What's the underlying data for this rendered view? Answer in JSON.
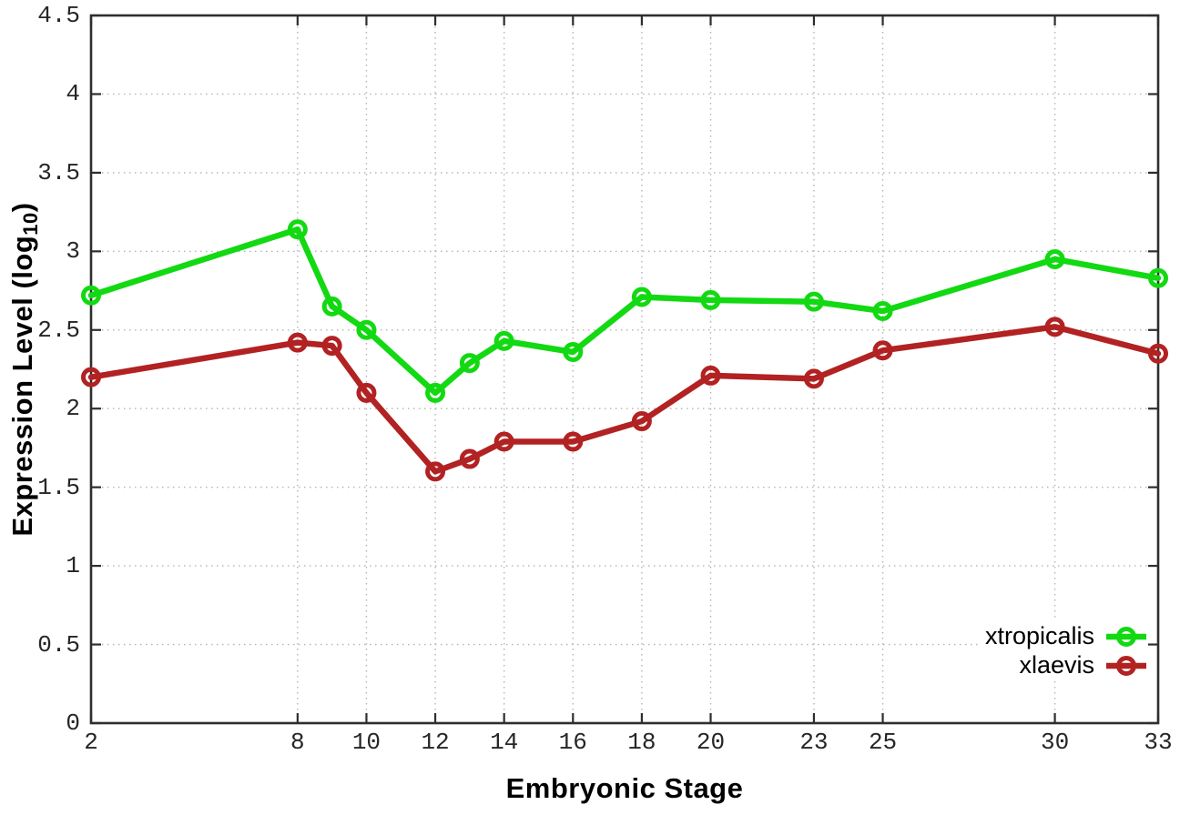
{
  "chart_data": {
    "type": "line",
    "title": "",
    "xlabel": "Embryonic Stage",
    "ylabel": "Expression Level (log10)",
    "ylabel_parts": {
      "pre": "Expression Level (log",
      "sub": "10",
      "post": ")"
    },
    "x": [
      2,
      8,
      9,
      10,
      12,
      13,
      14,
      16,
      18,
      20,
      23,
      25,
      30,
      33
    ],
    "series": [
      {
        "name": "xtropicalis",
        "color": "#12d912",
        "values": [
          2.72,
          3.14,
          2.65,
          2.5,
          2.1,
          2.29,
          2.43,
          2.36,
          2.71,
          2.69,
          2.68,
          2.62,
          2.95,
          2.83
        ]
      },
      {
        "name": "xlaevis",
        "color": "#b22222",
        "values": [
          2.2,
          2.42,
          2.4,
          2.1,
          1.6,
          1.68,
          1.79,
          1.79,
          1.92,
          2.21,
          2.19,
          2.37,
          2.52,
          2.35
        ]
      }
    ],
    "xlim": [
      2,
      33
    ],
    "ylim": [
      0,
      4.5
    ],
    "x_ticks": {
      "values": [
        2,
        8,
        10,
        12,
        14,
        16,
        18,
        20,
        23,
        25,
        30,
        33
      ],
      "labels": [
        "2",
        "8",
        "10",
        "12",
        "14",
        "16",
        "18",
        "20",
        "23",
        "25",
        "30",
        "33"
      ]
    },
    "y_ticks": {
      "values": [
        0,
        0.5,
        1,
        1.5,
        2,
        2.5,
        3,
        3.5,
        4,
        4.5
      ],
      "labels": [
        "0",
        "0.5",
        "1",
        "1.5",
        "2",
        "2.5",
        "3",
        "3.5",
        "4",
        "4.5"
      ]
    },
    "grid": true,
    "legend_position": "bottom-right",
    "style": {
      "background": "#ffffff",
      "border_color": "#2e2e2e",
      "grid_color": "#b4b4b4",
      "tick_color": "#2e2e2e",
      "tick_label_color": "#262626",
      "line_width": 6.5,
      "marker": "open-circle",
      "marker_radius": 8.5,
      "marker_stroke": 5
    }
  }
}
